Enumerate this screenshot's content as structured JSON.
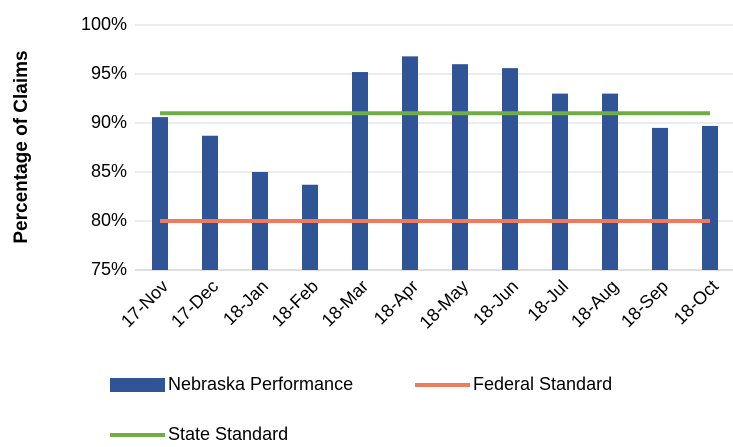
{
  "chart_data": {
    "type": "bar",
    "y_label": "Percentage of Claims",
    "categories": [
      "17-Nov",
      "17-Dec",
      "18-Jan",
      "18-Feb",
      "18-Mar",
      "18-Apr",
      "18-May",
      "18-Jun",
      "18-Jul",
      "18-Aug",
      "18-Sep",
      "18-Oct"
    ],
    "series": [
      {
        "name": "Nebraska Performance",
        "type": "bar",
        "color": "#2f5597",
        "values": [
          90.6,
          88.7,
          85.0,
          83.7,
          95.2,
          96.8,
          96.0,
          95.6,
          93.0,
          93.0,
          89.5,
          89.7
        ]
      },
      {
        "name": "Federal Standard",
        "type": "line",
        "color": "#f07b5c",
        "values": [
          80,
          80,
          80,
          80,
          80,
          80,
          80,
          80,
          80,
          80,
          80,
          80
        ]
      },
      {
        "name": "State Standard",
        "type": "line",
        "color": "#70ad47",
        "values": [
          91,
          91,
          91,
          91,
          91,
          91,
          91,
          91,
          91,
          91,
          91,
          91
        ]
      }
    ],
    "ylim": [
      75,
      100
    ],
    "yticks": [
      {
        "value": 75,
        "label": "75%"
      },
      {
        "value": 80,
        "label": "80%"
      },
      {
        "value": 85,
        "label": "85%"
      },
      {
        "value": 90,
        "label": "90%"
      },
      {
        "value": 95,
        "label": "95%"
      },
      {
        "value": 100,
        "label": "100%"
      }
    ],
    "grid": true
  }
}
